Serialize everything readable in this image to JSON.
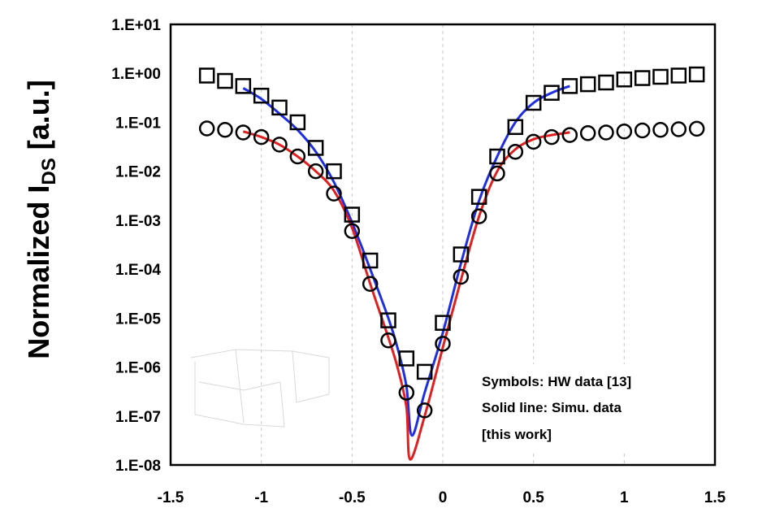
{
  "chart_data": {
    "type": "scatter",
    "title": "",
    "ylabel": {
      "prefix": "Normalized I",
      "subscript": "DS",
      "suffix": " [a.u.]"
    },
    "xlabel": "",
    "xlim": [
      -1.5,
      1.5
    ],
    "ylim": [
      1e-08,
      10
    ],
    "y_scale": "log",
    "grid": "vertical dashed at x ticks",
    "x_ticks": [
      -1.5,
      -1,
      -0.5,
      0,
      0.5,
      1,
      1.5
    ],
    "x_tick_labels": [
      "-1.5",
      "-1",
      "-0.5",
      "0",
      "0.5",
      "1",
      "1.5"
    ],
    "y_tick_labels": [
      "1.E+01",
      "1.E+00",
      "1.E-01",
      "1.E-02",
      "1.E-03",
      "1.E-04",
      "1.E-05",
      "1.E-06",
      "1.E-07",
      "1.E-08"
    ],
    "annotations": [
      "Symbols: HW data [13]",
      "Solid line: Simu. data",
      "[this work]"
    ],
    "series": [
      {
        "marker": "square",
        "color": "#000000",
        "x": [
          -1.3,
          -1.2,
          -1.1,
          -1.0,
          -0.9,
          -0.8,
          -0.7,
          -0.6,
          -0.5,
          -0.4,
          -0.3,
          -0.2,
          -0.1,
          0.0,
          0.1,
          0.2,
          0.3,
          0.4,
          0.5,
          0.6,
          0.7,
          0.8,
          0.9,
          1.0,
          1.1,
          1.2,
          1.3,
          1.4
        ],
        "y": [
          0.9,
          0.7,
          0.55,
          0.35,
          0.2,
          0.1,
          0.03,
          0.01,
          0.0013,
          0.00015,
          9e-06,
          1.5e-06,
          8e-07,
          8e-06,
          0.0002,
          0.003,
          0.02,
          0.08,
          0.25,
          0.4,
          0.55,
          0.6,
          0.65,
          0.75,
          0.8,
          0.85,
          0.9,
          0.95
        ]
      },
      {
        "marker": "circle",
        "color": "#000000",
        "x": [
          -1.3,
          -1.2,
          -1.1,
          -1.0,
          -0.9,
          -0.8,
          -0.7,
          -0.6,
          -0.5,
          -0.4,
          -0.3,
          -0.2,
          -0.1,
          0.0,
          0.1,
          0.2,
          0.3,
          0.4,
          0.5,
          0.6,
          0.7,
          0.8,
          0.9,
          1.0,
          1.1,
          1.2,
          1.3,
          1.4
        ],
        "y": [
          0.075,
          0.07,
          0.062,
          0.05,
          0.035,
          0.02,
          0.01,
          0.0035,
          0.0006,
          5e-05,
          3.5e-06,
          3e-07,
          1.3e-07,
          3e-06,
          7e-05,
          0.0012,
          0.009,
          0.025,
          0.04,
          0.05,
          0.055,
          0.06,
          0.062,
          0.065,
          0.068,
          0.07,
          0.072,
          0.074
        ]
      },
      {
        "type": "line",
        "color": "#1f2ee0",
        "x": [
          -1.1,
          -1.0,
          -0.9,
          -0.8,
          -0.7,
          -0.6,
          -0.5,
          -0.4,
          -0.3,
          -0.25,
          -0.2,
          -0.17,
          -0.1,
          0.0,
          0.1,
          0.2,
          0.3,
          0.4,
          0.5,
          0.6,
          0.7
        ],
        "y": [
          0.5,
          0.3,
          0.15,
          0.07,
          0.025,
          0.006,
          0.0009,
          0.0001,
          1e-05,
          2.5e-06,
          4e-07,
          4e-08,
          3e-07,
          5e-06,
          0.00013,
          0.0025,
          0.02,
          0.1,
          0.25,
          0.4,
          0.55
        ]
      },
      {
        "type": "line",
        "color": "#e02020",
        "x": [
          -1.1,
          -1.0,
          -0.9,
          -0.8,
          -0.7,
          -0.6,
          -0.5,
          -0.4,
          -0.3,
          -0.25,
          -0.2,
          -0.18,
          -0.1,
          0.0,
          0.1,
          0.2,
          0.3,
          0.4,
          0.5,
          0.6,
          0.7
        ],
        "y": [
          0.065,
          0.05,
          0.035,
          0.02,
          0.01,
          0.004,
          0.0007,
          5e-05,
          4e-06,
          1e-06,
          1.5e-07,
          1.3e-08,
          1e-07,
          2.5e-06,
          6e-05,
          0.0012,
          0.01,
          0.028,
          0.045,
          0.055,
          0.062
        ]
      }
    ]
  }
}
